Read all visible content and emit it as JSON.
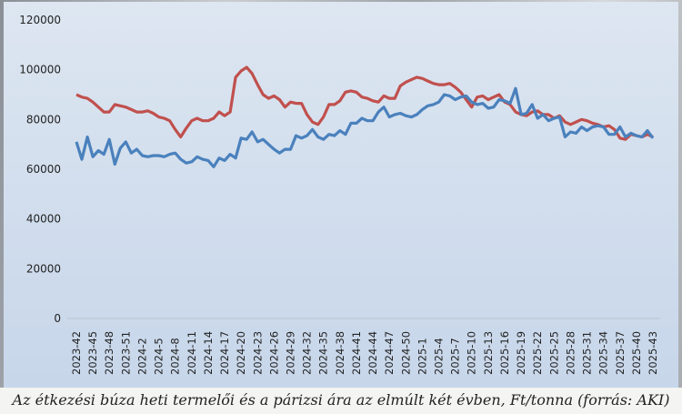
{
  "chart_data": {
    "type": "line",
    "title": "",
    "xlabel": "",
    "ylabel": "",
    "ylim": [
      0,
      120000
    ],
    "yticks": [
      0,
      20000,
      40000,
      60000,
      80000,
      100000,
      120000
    ],
    "grid": false,
    "legend": "none",
    "x_start": "2023-42",
    "x_end": "2025-43",
    "xtick_labels": [
      "2023-42",
      "2023-45",
      "2023-48",
      "2023-51",
      "2024-2",
      "2024-5",
      "2024-8",
      "2024-11",
      "2024-14",
      "2024-17",
      "2024-20",
      "2024-23",
      "2024-26",
      "2024-29",
      "2024-32",
      "2024-35",
      "2024-38",
      "2024-41",
      "2024-44",
      "2024-47",
      "2024-50",
      "2025-1",
      "2025-4",
      "2025-7",
      "2025-10",
      "2025-13",
      "2025-16",
      "2025-19",
      "2025-22",
      "2025-25",
      "2025-28",
      "2025-31",
      "2025-34",
      "2025-37",
      "2025-40",
      "2025-43"
    ],
    "series": [
      {
        "color": "#c0504d",
        "values": [
          90000,
          89000,
          88500,
          87000,
          85000,
          83000,
          83000,
          86000,
          85500,
          85000,
          84000,
          83000,
          83000,
          83500,
          82500,
          81000,
          80500,
          79500,
          76000,
          73000,
          76500,
          79500,
          80500,
          79500,
          79500,
          80500,
          83000,
          81500,
          83000,
          97000,
          99500,
          101000,
          98500,
          94000,
          90000,
          88500,
          89500,
          88000,
          85000,
          87000,
          86500,
          86500,
          82000,
          79000,
          78000,
          81000,
          86000,
          86000,
          87500,
          91000,
          91500,
          91000,
          89000,
          88500,
          87500,
          87000,
          89500,
          88500,
          88500,
          93500,
          95000,
          96000,
          97000,
          96500,
          95500,
          94500,
          94000,
          94000,
          94500,
          93000,
          91000,
          88000,
          85000,
          89000,
          89500,
          88000,
          89000,
          90000,
          87000,
          86000,
          83000,
          82000,
          81500,
          83000,
          83500,
          82000,
          82000,
          80500,
          81500,
          79000,
          78000,
          79000,
          80000,
          79500,
          78500,
          78000,
          77000,
          77500,
          76000,
          72500,
          72000,
          74000,
          73500,
          73000,
          74000,
          73000
        ]
      },
      {
        "color": "#4a81bd",
        "values": [
          71000,
          64000,
          73000,
          65000,
          67500,
          66000,
          72000,
          62000,
          68500,
          71000,
          66500,
          68000,
          65500,
          65000,
          65500,
          65500,
          65000,
          66000,
          66500,
          64000,
          62500,
          63000,
          65000,
          64000,
          63500,
          61000,
          64500,
          63500,
          66000,
          64500,
          72500,
          72000,
          75000,
          71000,
          72000,
          70000,
          68000,
          66500,
          68000,
          68000,
          73500,
          72500,
          73500,
          76000,
          73000,
          72000,
          74000,
          73500,
          75500,
          74000,
          78500,
          78500,
          80500,
          79500,
          79500,
          83000,
          85000,
          81000,
          82000,
          82500,
          81500,
          81000,
          82000,
          84000,
          85500,
          86000,
          87000,
          90000,
          89500,
          88000,
          89000,
          89500,
          87000,
          86000,
          86500,
          84500,
          85000,
          88000,
          87500,
          86500,
          92500,
          82000,
          82500,
          86000,
          80500,
          82000,
          79500,
          80500,
          81000,
          73000,
          75000,
          74500,
          77000,
          75500,
          77000,
          77500,
          77000,
          74000,
          74000,
          77000,
          73000,
          74500,
          73500,
          73000,
          75500,
          72500
        ]
      }
    ]
  },
  "caption": "Az étkezési búza heti termelői és a párizsi ára az elmúlt két évben, Ft/tonna (forrás: AKI)"
}
